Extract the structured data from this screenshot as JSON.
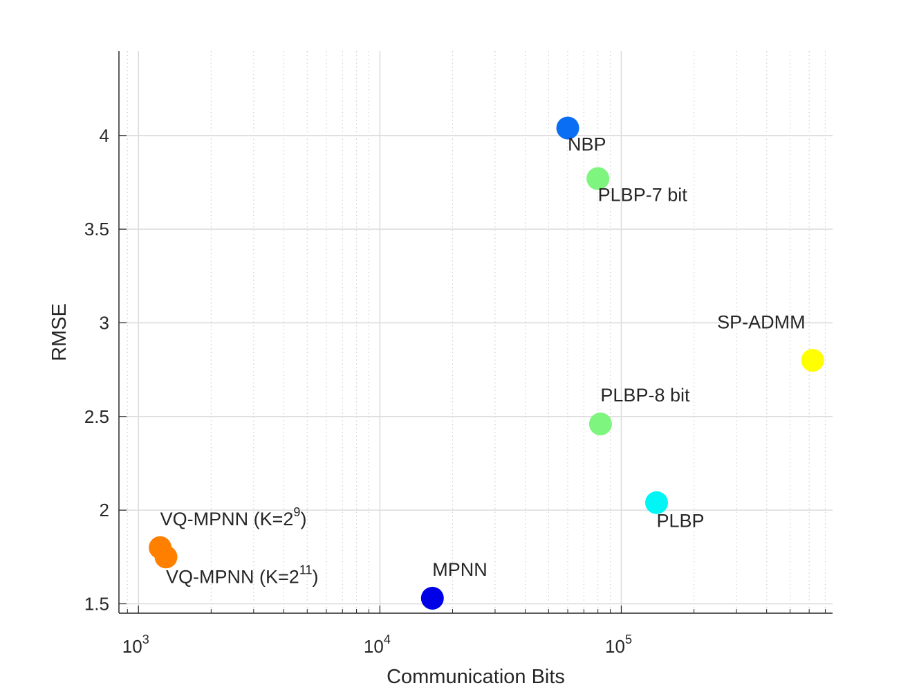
{
  "chart_data": {
    "type": "scatter",
    "title": "",
    "xlabel": "Communication Bits",
    "ylabel": "RMSE",
    "xscale": "log",
    "xlim": [
      830,
      750000
    ],
    "ylim": [
      1.45,
      4.45
    ],
    "grid": true,
    "x_major_ticks": [
      1000,
      10000,
      100000
    ],
    "x_major_tick_labels": [
      {
        "base": "10",
        "exp": "3"
      },
      {
        "base": "10",
        "exp": "4"
      },
      {
        "base": "10",
        "exp": "5"
      }
    ],
    "y_ticks": [
      1.5,
      2,
      2.5,
      3,
      3.5,
      4
    ],
    "y_tick_labels": [
      "1.5",
      "2",
      "2.5",
      "3",
      "3.5",
      "4"
    ],
    "points": [
      {
        "name": "NBP",
        "x": 60000,
        "y": 4.04,
        "color": "#0a6ef5",
        "label": {
          "text": "NBP",
          "sup": "",
          "suffix": "",
          "anchor": "start",
          "dx": 0,
          "dy": -0.12
        }
      },
      {
        "name": "PLBP-7 bit",
        "x": 80000,
        "y": 3.77,
        "color": "#7ef57e",
        "label": {
          "text": "PLBP-7 bit",
          "sup": "",
          "suffix": "",
          "anchor": "start",
          "dx": 0,
          "dy": -0.12
        }
      },
      {
        "name": "SP-ADMM",
        "x": 620000,
        "y": 2.8,
        "color": "#ffff00",
        "label": {
          "text": "SP-ADMM",
          "sup": "",
          "suffix": "",
          "anchor": "end",
          "dx": -0.03,
          "dy": 0.17
        }
      },
      {
        "name": "PLBP-8 bit",
        "x": 82000,
        "y": 2.46,
        "color": "#7ef57e",
        "label": {
          "text": "PLBP-8 bit",
          "sup": "",
          "suffix": "",
          "anchor": "start",
          "dx": 0,
          "dy": 0.12
        }
      },
      {
        "name": "PLBP",
        "x": 140000,
        "y": 2.04,
        "color": "#00f5f5",
        "label": {
          "text": "PLBP",
          "sup": "",
          "suffix": "",
          "anchor": "start",
          "dx": 0,
          "dy": -0.13
        }
      },
      {
        "name": "VQ-MPNN (K=2^9)",
        "x": 1230,
        "y": 1.8,
        "color": "#ff7f00",
        "label": {
          "text": "VQ-MPNN (K=2",
          "sup": "9",
          "suffix": ")",
          "anchor": "start",
          "dx": 0,
          "dy": 0.12
        }
      },
      {
        "name": "VQ-MPNN (K=2^11)",
        "x": 1300,
        "y": 1.75,
        "color": "#ff7f00",
        "label": {
          "text": "VQ-MPNN (K=2",
          "sup": "11",
          "suffix": ")",
          "anchor": "start",
          "dx": 0,
          "dy": -0.14
        }
      },
      {
        "name": "MPNN",
        "x": 16500,
        "y": 1.53,
        "color": "#0000e6",
        "label": {
          "text": "MPNN",
          "sup": "",
          "suffix": "",
          "anchor": "start",
          "dx": 0,
          "dy": 0.12
        }
      }
    ]
  }
}
